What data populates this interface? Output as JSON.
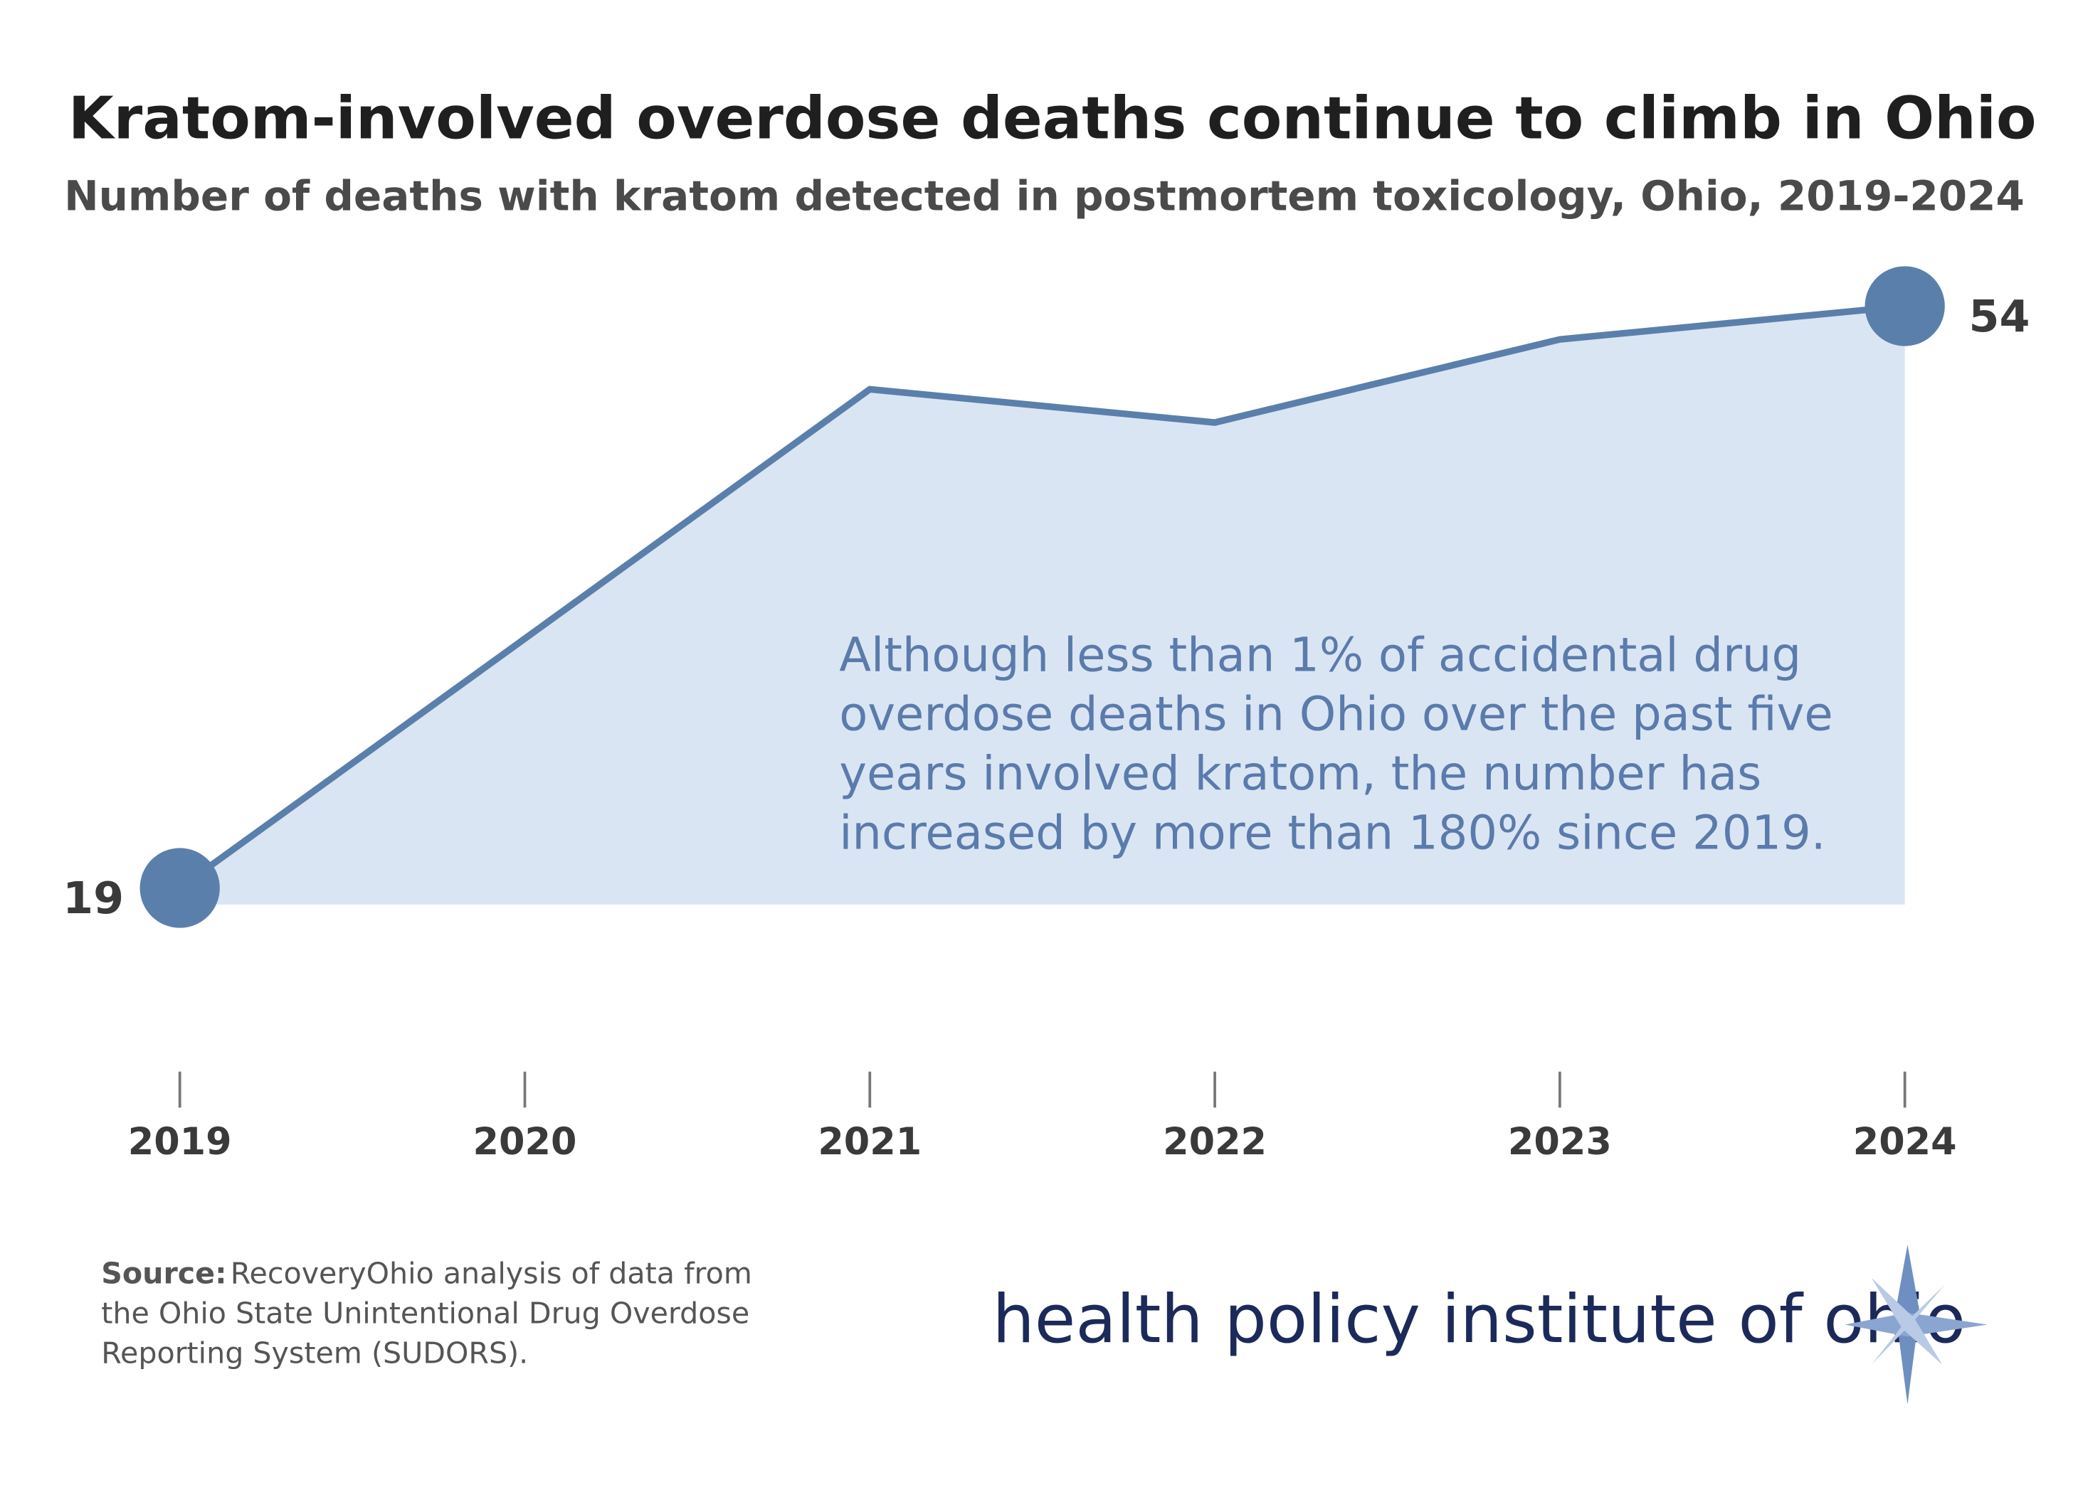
{
  "chart_data": {
    "type": "area",
    "title": "Kratom-involved overdose deaths continue to climb in Ohio",
    "subtitle": "Number of deaths with kratom detected in postmortem toxicology, Ohio, 2019-2024",
    "categories": [
      "2019",
      "2020",
      "2021",
      "2022",
      "2023",
      "2024"
    ],
    "values": [
      19,
      34,
      49,
      47,
      52,
      54
    ],
    "value_labels": [
      "19",
      null,
      null,
      null,
      null,
      "54"
    ],
    "color": "#5b7fab",
    "fill_color": "#dae5f4",
    "ylim": [
      18,
      56
    ],
    "annotation": [
      "Although less than 1% of accidental drug",
      "overdose deaths in Ohio over the past five",
      "years involved kratom, the number has",
      "increased by more than 180% since 2019."
    ]
  },
  "source_label": "Source:",
  "source_lines": [
    "RecoveryOhio analysis of data from",
    "the Ohio State Unintentional Drug Overdose",
    "Reporting System (SUDORS)."
  ],
  "logo": "health policy institute of ohio"
}
